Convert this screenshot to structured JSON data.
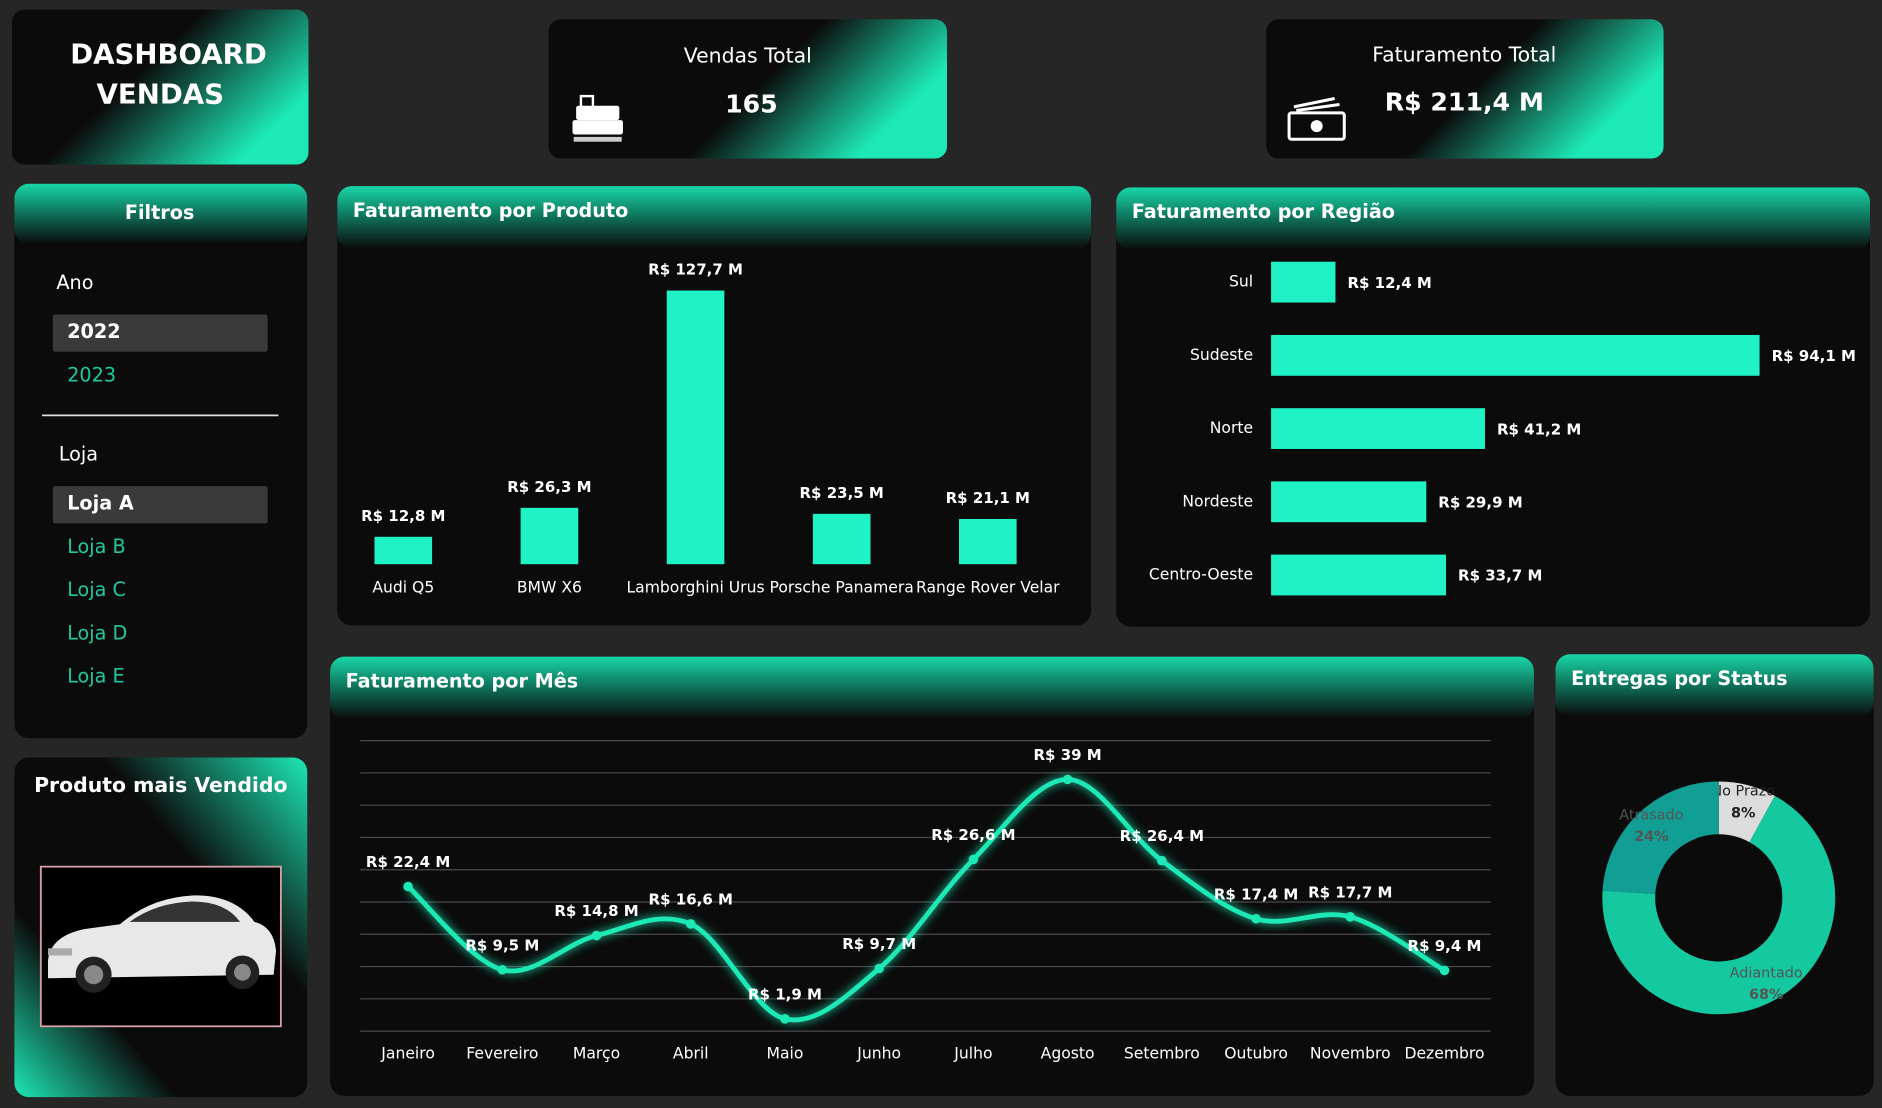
{
  "header": {
    "title": "DASHBOARD VENDAS"
  },
  "kpis": [
    {
      "label": "Vendas Total",
      "value": 165
    },
    {
      "label": "Faturamento Total",
      "value": "R$ 211,4 M"
    }
  ],
  "filters": {
    "title": "Filtros",
    "groups": [
      {
        "label": "Ano",
        "options": [
          "2022",
          "2023"
        ],
        "selected": 0
      },
      {
        "label": "Loja",
        "options": [
          "Loja A",
          "Loja B",
          "Loja C",
          "Loja D",
          "Loja E"
        ],
        "selected": 0
      }
    ]
  },
  "featured_product": {
    "title": "Produto mais Vendido"
  },
  "chart_data": [
    {
      "type": "bar",
      "title": "Faturamento por Produto",
      "categories": [
        "Audi Q5",
        "BMW X6",
        "Lamborghini Urus",
        "Porsche Panamera",
        "Range Rover Velar"
      ],
      "values": [
        12.8,
        26.3,
        127.7,
        23.5,
        21.1
      ],
      "value_labels": [
        "R$ 12,8 M",
        "R$ 26,3 M",
        "R$ 127,7 M",
        "R$ 23,5 M",
        "R$ 21,1 M"
      ],
      "color": "#1ff2c5"
    },
    {
      "type": "hbar",
      "title": "Faturamento por Região",
      "categories": [
        "Sul",
        "Sudeste",
        "Norte",
        "Nordeste",
        "Centro-Oeste"
      ],
      "values": [
        12.4,
        94.1,
        41.2,
        29.9,
        33.7
      ],
      "value_labels": [
        "R$ 12,4 M",
        "R$ 94,1 M",
        "R$ 41,2 M",
        "R$ 29,9 M",
        "R$ 33,7 M"
      ],
      "color": "#1ff2c5"
    },
    {
      "type": "line",
      "title": "Faturamento por Mês",
      "categories": [
        "Janeiro",
        "Fevereiro",
        "Março",
        "Abril",
        "Maio",
        "Junho",
        "Julho",
        "Agosto",
        "Setembro",
        "Outubro",
        "Novembro",
        "Dezembro"
      ],
      "values": [
        22.4,
        9.5,
        14.8,
        16.6,
        1.9,
        9.7,
        26.6,
        39,
        26.4,
        17.4,
        17.7,
        9.4
      ],
      "value_labels": [
        "R$ 22,4 M",
        "R$ 9,5 M",
        "R$ 14,8 M",
        "R$ 16,6 M",
        "R$ 1,9 M",
        "R$ 9,7 M",
        "R$ 26,6 M",
        "R$ 39 M",
        "R$ 26,4 M",
        "R$ 17,4 M",
        "R$ 17,7 M",
        "R$ 9,4 M"
      ],
      "color": "#1de9b6",
      "ylim": [
        0,
        45
      ],
      "grid": true
    },
    {
      "type": "donut",
      "title": "Entregas por Status",
      "categories": [
        "No Prazo",
        "Adiantado",
        "Atrasado"
      ],
      "values": [
        8,
        68,
        24
      ],
      "value_labels": [
        "8%",
        "68%",
        "24%"
      ],
      "colors": [
        "#dcdcdc",
        "#14c9a0",
        "#119e95"
      ]
    }
  ]
}
